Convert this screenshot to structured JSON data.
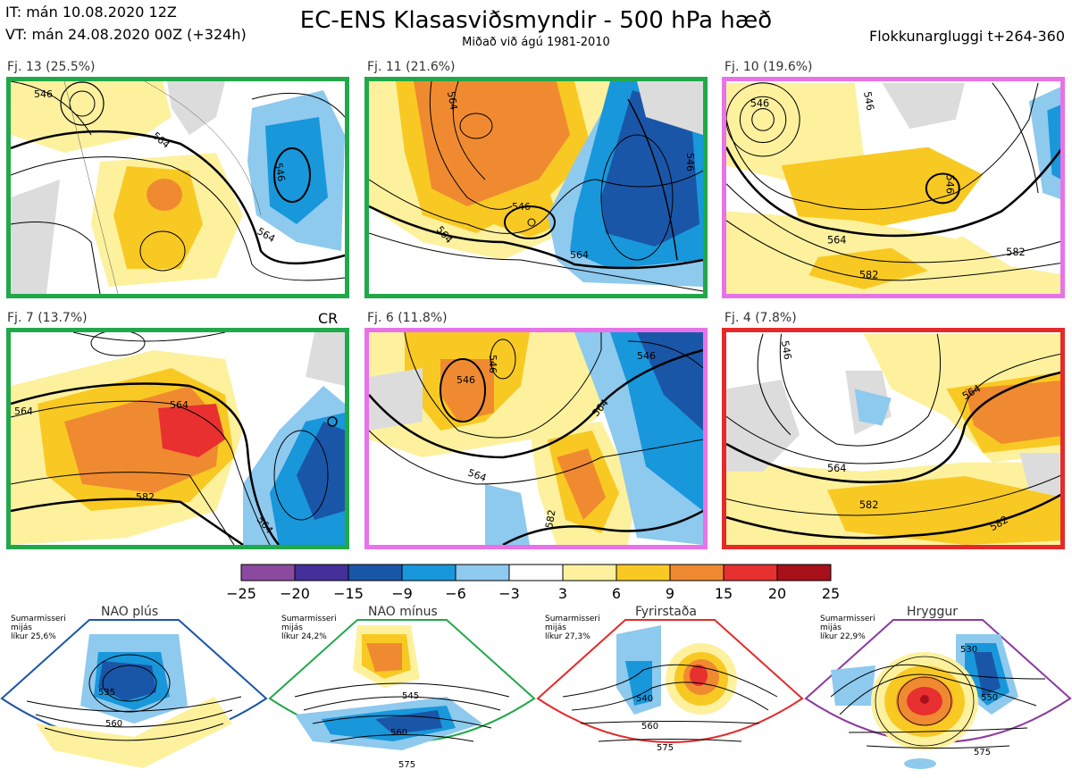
{
  "header": {
    "it": "IT: mán 10.08.2020 12Z",
    "vt": "VT: mán 24.08.2020 00Z  (+324h)",
    "title": "EC-ENS Klasasviðsmyndir - 500 hPa hæð",
    "subtitle": "Miðað við ágú 1981-2010",
    "window": "Flokkunargluggi t+264-360"
  },
  "panels": [
    {
      "label": "Fj. 13 (25.5%)",
      "border": "#21a84a",
      "contours": [
        "546",
        "564",
        "564",
        "546"
      ]
    },
    {
      "label": "Fj. 11 (21.6%)",
      "border": "#21a84a",
      "contours": [
        "564",
        "546",
        "564",
        "564",
        "546"
      ]
    },
    {
      "label": "Fj. 10 (19.6%)",
      "border": "#e872e8",
      "contours": [
        "546",
        "546",
        "564",
        "582",
        "546",
        "582"
      ]
    },
    {
      "label": "Fj. 7 (13.7%)",
      "border": "#21a84a",
      "contours": [
        "564",
        "564",
        "582",
        "564"
      ],
      "tag": "CR"
    },
    {
      "label": "Fj. 6 (11.8%)",
      "border": "#e872e8",
      "contours": [
        "546",
        "546",
        "564",
        "564",
        "546",
        "582"
      ]
    },
    {
      "label": "Fj. 4 (7.8%)",
      "border": "#e42a2a",
      "contours": [
        "564",
        "564",
        "582",
        "582",
        "546"
      ]
    }
  ],
  "colorbar": {
    "ticks": [
      "−25",
      "−20",
      "−15",
      "−9",
      "−6",
      "−3",
      "3",
      "6",
      "9",
      "15",
      "20",
      "25"
    ],
    "colors": [
      "#8b4aa0",
      "#44309a",
      "#1a56a8",
      "#1897db",
      "#8ec9ee",
      "#ffffff",
      "#fdf19e",
      "#f9c923",
      "#f08a30",
      "#e83030",
      "#a8101a"
    ]
  },
  "regimes": [
    {
      "title": "NAO plús",
      "desc": "Sumarmisseri\nmijás\nlíkur 25,6%",
      "color": "#1a56a8",
      "contours": [
        "535",
        "560"
      ]
    },
    {
      "title": "NAO mínus",
      "desc": "Sumarmisseri\nmijás\nlíkur 24,2%",
      "color": "#21a84a",
      "contours": [
        "545",
        "560",
        "575"
      ]
    },
    {
      "title": "Fyrirstaða",
      "desc": "Sumarmisseri\nmijás\nlíkur 27,3%",
      "color": "#e42a2a",
      "contours": [
        "540",
        "560",
        "575"
      ]
    },
    {
      "title": "Hryggur",
      "desc": "Sumarmisseri\nmijás\nlíkur 22,9%",
      "color": "#e872e8",
      "contours": [
        "530",
        "550",
        "575"
      ]
    }
  ]
}
